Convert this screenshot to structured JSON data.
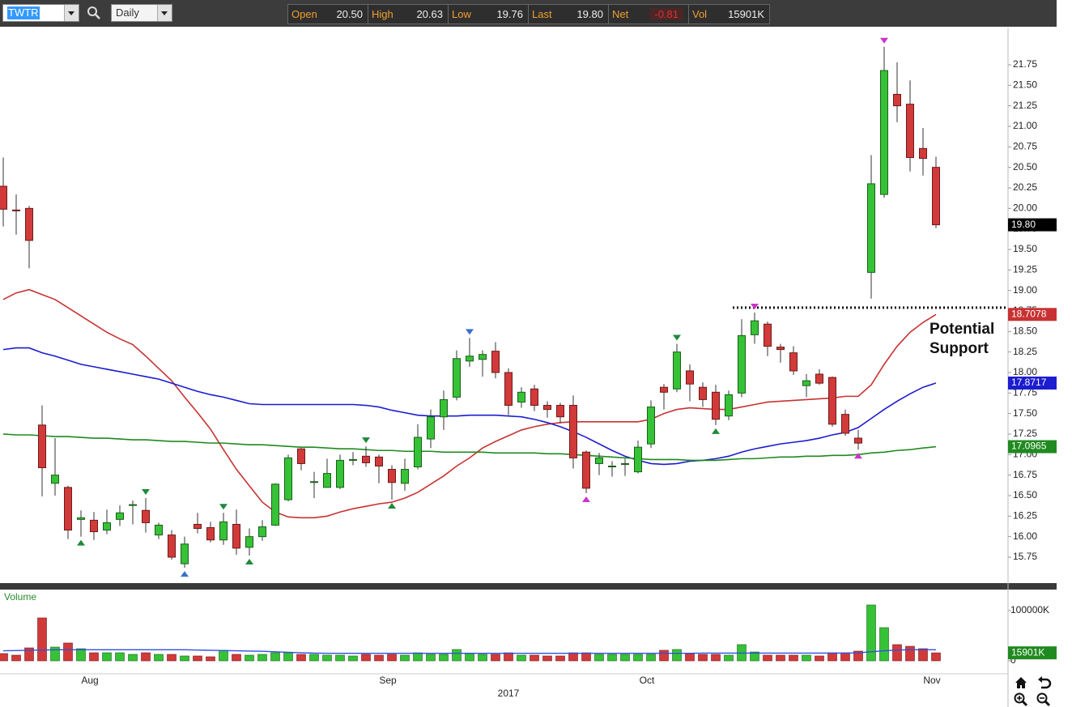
{
  "toolbar": {
    "symbol": "TWTR",
    "interval": "Daily",
    "quote": [
      {
        "label": "Open",
        "value": "20.50"
      },
      {
        "label": "High",
        "value": "20.63"
      },
      {
        "label": "Low",
        "value": "19.76"
      },
      {
        "label": "Last",
        "value": "19.80"
      },
      {
        "label": "Net",
        "value": "-0.81"
      },
      {
        "label": "Vol",
        "value": "15901K"
      }
    ]
  },
  "chart_data": {
    "type": "candlestick",
    "categories": [
      null,
      null,
      null,
      null,
      null,
      null,
      null,
      "Aug",
      null,
      null,
      null,
      null,
      null,
      null,
      null,
      null,
      null,
      null,
      null,
      null,
      null,
      null,
      null,
      null,
      null,
      null,
      null,
      null,
      null,
      null,
      "Sep",
      null,
      null,
      null,
      null,
      null,
      null,
      null,
      null,
      null,
      null,
      null,
      null,
      null,
      null,
      null,
      null,
      null,
      null,
      null,
      "Oct",
      null,
      null,
      null,
      null,
      null,
      null,
      null,
      null,
      null,
      null,
      null,
      null,
      null,
      null,
      null,
      null,
      null,
      null,
      null,
      null,
      null,
      "Nov"
    ],
    "x_year_label": "2017",
    "open": [
      20.27,
      19.98,
      20.0,
      17.36,
      16.65,
      16.6,
      16.21,
      16.2,
      16.08,
      16.21,
      16.39,
      16.32,
      16.02,
      16.02,
      15.67,
      16.15,
      16.11,
      15.96,
      16.15,
      15.87,
      16.0,
      16.14,
      16.45,
      17.07,
      16.67,
      16.6,
      16.6,
      16.94,
      16.98,
      16.97,
      16.82,
      16.65,
      16.85,
      17.19,
      17.46,
      17.7,
      18.14,
      18.16,
      18.26,
      18.0,
      17.64,
      17.8,
      17.6,
      17.6,
      17.6,
      17.03,
      16.89,
      16.86,
      16.89,
      16.79,
      17.13,
      17.82,
      17.8,
      18.02,
      17.82,
      17.76,
      17.47,
      17.75,
      18.46,
      18.59,
      18.31,
      18.24,
      17.84,
      17.98,
      17.94,
      17.49,
      17.2,
      19.22,
      20.17,
      21.39,
      21.27,
      20.73,
      20.5
    ],
    "high": [
      20.62,
      20.17,
      20.03,
      17.6,
      17.2,
      16.62,
      16.32,
      16.3,
      16.33,
      16.38,
      16.44,
      16.47,
      16.17,
      16.08,
      16.0,
      16.29,
      16.18,
      16.29,
      16.33,
      16.1,
      16.2,
      16.65,
      17.0,
      17.08,
      16.79,
      16.95,
      17.0,
      17.03,
      17.1,
      17.0,
      16.87,
      16.95,
      17.37,
      17.55,
      17.78,
      18.27,
      18.42,
      18.27,
      18.37,
      18.05,
      17.82,
      17.85,
      17.65,
      17.63,
      17.72,
      17.05,
      17.02,
      16.92,
      16.95,
      17.17,
      17.66,
      17.86,
      18.35,
      18.1,
      17.88,
      17.85,
      17.78,
      18.65,
      18.73,
      18.62,
      18.35,
      18.32,
      17.98,
      18.04,
      17.95,
      17.55,
      17.3,
      20.65,
      21.97,
      21.78,
      21.56,
      20.98,
      20.63
    ],
    "low": [
      19.78,
      19.68,
      19.27,
      16.49,
      16.5,
      15.97,
      16.0,
      15.96,
      16.03,
      16.13,
      16.15,
      16.05,
      15.97,
      15.72,
      15.62,
      16.04,
      15.93,
      15.9,
      15.78,
      15.77,
      15.95,
      16.13,
      16.43,
      16.81,
      16.47,
      16.6,
      16.58,
      16.87,
      16.85,
      16.65,
      16.45,
      16.56,
      16.82,
      17.08,
      17.3,
      17.66,
      18.07,
      17.95,
      17.93,
      17.48,
      17.57,
      17.53,
      17.45,
      17.38,
      16.83,
      16.53,
      16.75,
      16.73,
      16.74,
      16.77,
      17.08,
      17.55,
      17.76,
      17.65,
      17.58,
      17.36,
      17.42,
      17.7,
      18.35,
      18.2,
      18.12,
      17.97,
      17.7,
      17.85,
      17.34,
      17.23,
      17.06,
      18.9,
      20.13,
      21.05,
      20.45,
      20.4,
      19.76
    ],
    "close": [
      19.99,
      19.97,
      19.61,
      16.84,
      16.75,
      16.08,
      16.23,
      16.06,
      16.17,
      16.29,
      16.39,
      16.17,
      16.14,
      15.75,
      15.91,
      16.1,
      15.96,
      16.18,
      15.86,
      16.0,
      16.12,
      16.64,
      16.96,
      16.89,
      16.67,
      16.77,
      16.93,
      16.94,
      16.9,
      16.86,
      16.66,
      16.82,
      17.21,
      17.46,
      17.67,
      18.17,
      18.2,
      18.22,
      18.0,
      17.6,
      17.76,
      17.6,
      17.55,
      17.46,
      16.96,
      16.59,
      16.96,
      16.86,
      16.89,
      17.09,
      17.58,
      17.76,
      18.25,
      17.86,
      17.67,
      17.43,
      17.73,
      18.45,
      18.63,
      18.32,
      18.28,
      18.02,
      17.9,
      17.87,
      17.37,
      17.26,
      17.14,
      20.3,
      21.68,
      21.25,
      20.62,
      20.61,
      19.8
    ],
    "last_label": "19.80",
    "last_color": "#000000",
    "up_color": "#36c236",
    "down_color": "#d23a3a",
    "ylim": [
      15.434,
      22.194
    ],
    "yticks": [
      15.75,
      {
        "value": 16,
        "label": "16.00"
      },
      16.25,
      {
        "value": 16.5,
        "label": "16.50"
      },
      16.75,
      {
        "value": 17,
        "label": "17.00"
      },
      17.25,
      {
        "value": 17.5,
        "label": "17.50"
      },
      17.75,
      {
        "value": 18,
        "label": "18.00"
      },
      18.25,
      {
        "value": 18.5,
        "label": "18.50"
      },
      18.75,
      {
        "value": 19,
        "label": "19.00"
      },
      19.25,
      {
        "value": 19.5,
        "label": "19.50"
      },
      19.75,
      {
        "value": 20,
        "label": "20.00"
      },
      20.25,
      {
        "value": 20.5,
        "label": "20.50"
      },
      20.75,
      {
        "value": 21,
        "label": "21.00"
      },
      21.25,
      {
        "value": 21.5,
        "label": "21.50"
      },
      21.75
    ],
    "ma": [
      {
        "color": "#c83232",
        "last_label": "18.7078",
        "values": [
          18.89,
          18.97,
          19.01,
          18.95,
          18.89,
          18.79,
          18.69,
          18.59,
          18.49,
          18.41,
          18.34,
          18.2,
          18.05,
          17.9,
          17.7,
          17.51,
          17.31,
          17.06,
          16.82,
          16.62,
          16.42,
          16.3,
          16.24,
          16.23,
          16.23,
          16.25,
          16.3,
          16.34,
          16.37,
          16.4,
          16.42,
          16.47,
          16.54,
          16.64,
          16.74,
          16.86,
          16.96,
          17.08,
          17.16,
          17.23,
          17.3,
          17.34,
          17.37,
          17.39,
          17.4,
          17.4,
          17.4,
          17.4,
          17.4,
          17.4,
          17.43,
          17.5,
          17.55,
          17.57,
          17.56,
          17.55,
          17.55,
          17.58,
          17.61,
          17.64,
          17.65,
          17.66,
          17.67,
          17.68,
          17.69,
          17.71,
          17.71,
          17.85,
          18.1,
          18.32,
          18.49,
          18.61,
          18.7078
        ]
      },
      {
        "color": "#1c1cd0",
        "last_label": "17.8717",
        "values": [
          18.28,
          18.3,
          18.3,
          18.24,
          18.2,
          18.15,
          18.1,
          18.07,
          18.04,
          18.01,
          17.98,
          17.95,
          17.92,
          17.87,
          17.82,
          17.77,
          17.73,
          17.7,
          17.66,
          17.62,
          17.61,
          17.61,
          17.61,
          17.61,
          17.61,
          17.61,
          17.61,
          17.61,
          17.6,
          17.58,
          17.54,
          17.51,
          17.48,
          17.47,
          17.47,
          17.47,
          17.48,
          17.48,
          17.48,
          17.47,
          17.46,
          17.43,
          17.39,
          17.34,
          17.28,
          17.21,
          17.13,
          17.05,
          16.98,
          16.93,
          16.89,
          16.88,
          16.89,
          16.92,
          16.93,
          16.95,
          16.98,
          17.03,
          17.07,
          17.1,
          17.13,
          17.15,
          17.17,
          17.2,
          17.24,
          17.27,
          17.33,
          17.44,
          17.55,
          17.65,
          17.74,
          17.82,
          17.8717
        ]
      },
      {
        "color": "#1f8a1f",
        "last_label": "17.0965",
        "values": [
          17.25,
          17.24,
          17.24,
          17.23,
          17.22,
          17.22,
          17.21,
          17.2,
          17.2,
          17.19,
          17.18,
          17.18,
          17.17,
          17.16,
          17.16,
          17.15,
          17.14,
          17.14,
          17.13,
          17.12,
          17.12,
          17.11,
          17.1,
          17.09,
          17.09,
          17.08,
          17.07,
          17.07,
          17.06,
          17.05,
          17.05,
          17.04,
          17.04,
          17.04,
          17.03,
          17.03,
          17.03,
          17.03,
          17.02,
          17.02,
          17.02,
          17.02,
          17.01,
          17.01,
          17.0,
          16.99,
          16.98,
          16.97,
          16.96,
          16.95,
          16.94,
          16.94,
          16.94,
          16.93,
          16.93,
          16.93,
          16.94,
          16.95,
          16.95,
          16.96,
          16.97,
          16.97,
          16.98,
          16.98,
          16.99,
          16.99,
          17.0,
          17.02,
          17.03,
          17.05,
          17.06,
          17.08,
          17.0965
        ]
      }
    ],
    "markers": [
      {
        "index": 6,
        "side": "below",
        "color": "#1f8a3a"
      },
      {
        "index": 11,
        "side": "above",
        "color": "#1f8a3a"
      },
      {
        "index": 14,
        "side": "below",
        "color": "#3a6fd0"
      },
      {
        "index": 17,
        "side": "above",
        "color": "#1f8a3a"
      },
      {
        "index": 19,
        "side": "below",
        "color": "#1f8a3a"
      },
      {
        "index": 28,
        "side": "above",
        "color": "#1f8a3a"
      },
      {
        "index": 30,
        "side": "below",
        "color": "#1f8a3a"
      },
      {
        "index": 36,
        "side": "above",
        "color": "#3a6fd0"
      },
      {
        "index": 45,
        "side": "below",
        "color": "#cc33cc"
      },
      {
        "index": 52,
        "side": "above",
        "color": "#1f8a3a"
      },
      {
        "index": 55,
        "side": "below",
        "color": "#1f8a3a"
      },
      {
        "index": 58,
        "side": "above",
        "color": "#cc33cc"
      },
      {
        "index": 66,
        "side": "below",
        "color": "#cc33cc"
      },
      {
        "index": 68,
        "side": "above",
        "color": "#cc33cc"
      }
    ],
    "support": {
      "value": 18.79,
      "label": [
        "Potential",
        "Support"
      ]
    },
    "volume": {
      "title": "Volume",
      "values": [
        14500,
        11300,
        25800,
        85500,
        27400,
        35500,
        24200,
        16100,
        16100,
        16100,
        12900,
        16100,
        12900,
        12900,
        9700,
        9700,
        8100,
        21000,
        12900,
        11300,
        12900,
        16100,
        16100,
        12900,
        12900,
        11300,
        11300,
        9700,
        12900,
        11300,
        12900,
        11300,
        16100,
        12900,
        12900,
        22600,
        14500,
        12900,
        12900,
        16100,
        11300,
        11300,
        9700,
        9700,
        16100,
        16100,
        12900,
        12900,
        12900,
        12900,
        12900,
        21000,
        22600,
        14500,
        12900,
        12900,
        11300,
        32300,
        17700,
        11300,
        11300,
        11300,
        11300,
        9700,
        16100,
        16100,
        19400,
        111300,
        66100,
        32300,
        29000,
        24200,
        15901
      ],
      "last_label": "15901K",
      "badge_color": "#1f8a1f",
      "ma_color": "#3050e0",
      "ma_values": [
        20000,
        20500,
        21000,
        21500,
        22000,
        22000,
        22000,
        22000,
        22000,
        22000,
        22000,
        22000,
        22000,
        22000,
        22000,
        21500,
        21000,
        20500,
        20000,
        19500,
        19000,
        18000,
        17000,
        16000,
        15500,
        15000,
        15000,
        15000,
        15000,
        15000,
        15000,
        15000,
        15000,
        15000,
        15000,
        15000,
        15000,
        15000,
        15000,
        15000,
        15000,
        15000,
        15000,
        15000,
        15000,
        15000,
        15000,
        15000,
        15000,
        15000,
        15000,
        15000,
        15000,
        15000,
        15500,
        15500,
        15500,
        15500,
        15500,
        15500,
        15500,
        15500,
        15500,
        15500,
        15500,
        15500,
        16000,
        18000,
        20000,
        21500,
        22000,
        22000,
        22000
      ],
      "ylim": [
        -25806,
        141935
      ],
      "yticks": [
        0,
        {
          "value": 100000,
          "label": "100000K"
        }
      ]
    }
  }
}
